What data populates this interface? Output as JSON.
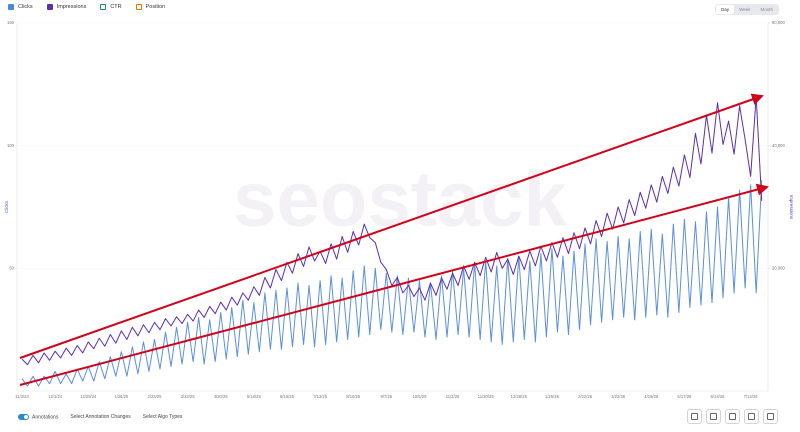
{
  "chart_data": {
    "type": "line",
    "legend": [
      "Clicks",
      "Impressions",
      "CTR",
      "Position"
    ],
    "legend_colors": [
      "#4a86e8",
      "#5b2fb0",
      "#1e8e5e",
      "#e8710a"
    ],
    "legend_checked": [
      true,
      true,
      false,
      false
    ],
    "periods": [
      "Day",
      "Week",
      "Month"
    ],
    "watermark": "seostack",
    "ylabel": "Clicks",
    "y2label": "Impressions",
    "ylim": [
      0,
      150
    ],
    "yticks": [
      50,
      100,
      150
    ],
    "y2lim": [
      0,
      60000
    ],
    "y2ticks": [
      {
        "value": 20000,
        "label": "20,000"
      },
      {
        "value": 40000,
        "label": "40,000"
      },
      {
        "value": 60000,
        "label": "60,000"
      }
    ],
    "categories": [
      "11/3/24",
      null,
      null,
      null,
      null,
      null,
      "12/1/24",
      null,
      null,
      null,
      null,
      null,
      "12/29/24",
      null,
      null,
      null,
      null,
      null,
      "1/26/25",
      null,
      null,
      null,
      null,
      null,
      "2/23/25",
      null,
      null,
      null,
      null,
      null,
      "3/23/25",
      null,
      null,
      null,
      null,
      null,
      "4/20/25",
      null,
      null,
      null,
      null,
      null,
      "5/18/25",
      null,
      null,
      null,
      null,
      null,
      "6/15/25",
      null,
      null,
      null,
      null,
      null,
      "7/13/25",
      null,
      null,
      null,
      null,
      null,
      "8/10/25",
      null,
      null,
      null,
      null,
      null,
      "9/7/25",
      null,
      null,
      null,
      null,
      null,
      "10/5/25",
      null,
      null,
      null,
      null,
      null,
      "11/2/25",
      null,
      null,
      null,
      null,
      null,
      "11/30/25",
      null,
      null,
      null,
      null,
      null,
      "12/28/25",
      null,
      null,
      null,
      null,
      null,
      "1/25/26",
      null,
      null,
      null,
      null,
      null,
      "2/22/26",
      null,
      null,
      null,
      null,
      null,
      "3/22/26",
      null,
      null,
      null,
      null,
      null,
      "4/19/26",
      null,
      null,
      null,
      null,
      null,
      "5/17/26",
      null,
      null,
      null,
      null,
      null,
      "6/14/26",
      null,
      null,
      null,
      null,
      null,
      "7/12/26",
      null,
      null
    ],
    "series": [
      {
        "name": "Clicks",
        "color": "#5b8fe0",
        "values": [
          5,
          2,
          6,
          2,
          6,
          3,
          8,
          3,
          7,
          3,
          9,
          4,
          10,
          4,
          12,
          5,
          14,
          6,
          16,
          6,
          18,
          7,
          20,
          8,
          21,
          9,
          24,
          10,
          26,
          11,
          28,
          12,
          30,
          11,
          29,
          12,
          32,
          13,
          34,
          14,
          37,
          15,
          36,
          16,
          40,
          17,
          41,
          17,
          42,
          18,
          44,
          19,
          43,
          18,
          45,
          19,
          47,
          20,
          46,
          21,
          49,
          22,
          51,
          23,
          50,
          25,
          48,
          24,
          47,
          23,
          46,
          24,
          45,
          22,
          44,
          21,
          47,
          22,
          49,
          23,
          50,
          22,
          52,
          21,
          53,
          20,
          51,
          19,
          54,
          20,
          55,
          21,
          53,
          20,
          56,
          22,
          58,
          24,
          55,
          23,
          57,
          25,
          60,
          27,
          62,
          28,
          61,
          29,
          63,
          30,
          62,
          29,
          65,
          30,
          66,
          31,
          64,
          30,
          68,
          32,
          70,
          34,
          69,
          35,
          73,
          36,
          75,
          38,
          79,
          40,
          82,
          42,
          84,
          40,
          86
        ]
      },
      {
        "name": "Impressions",
        "color": "#5b2fb0",
        "axis": "y2",
        "values": [
          5200,
          4300,
          5800,
          4600,
          6200,
          5000,
          6500,
          5400,
          7000,
          5800,
          7400,
          6200,
          8000,
          6900,
          8600,
          7300,
          9200,
          7800,
          9800,
          8400,
          10400,
          9000,
          10800,
          9500,
          11200,
          10000,
          11800,
          10600,
          12100,
          11000,
          12500,
          11400,
          13200,
          12000,
          13800,
          12600,
          14500,
          13200,
          15300,
          14000,
          16000,
          14800,
          17000,
          15600,
          18500,
          16800,
          19800,
          18000,
          21000,
          19200,
          22400,
          20300,
          23500,
          21200,
          22800,
          20800,
          24000,
          21500,
          25200,
          22600,
          26000,
          23800,
          27200,
          25000,
          24200,
          21000,
          19800,
          17200,
          18500,
          16000,
          17200,
          15400,
          16800,
          14800,
          17600,
          15600,
          18400,
          16600,
          19200,
          17200,
          20400,
          18200,
          21000,
          18800,
          21800,
          19400,
          22600,
          20000,
          21500,
          19000,
          22000,
          19800,
          22800,
          20400,
          23600,
          21200,
          24200,
          21800,
          25000,
          22400,
          25800,
          23200,
          26600,
          24000,
          27800,
          25200,
          29000,
          26400,
          30000,
          27400,
          31200,
          28600,
          32400,
          29800,
          33600,
          30800,
          35000,
          32200,
          36500,
          33400,
          38500,
          34800,
          42000,
          37000,
          45000,
          38800,
          47000,
          40200,
          44000,
          38600,
          46500,
          41000,
          35000,
          48000,
          31000
        ]
      }
    ],
    "bottom_controls": [
      "Annotations",
      "Select Annotation Changes",
      "Select Algo Types"
    ]
  }
}
